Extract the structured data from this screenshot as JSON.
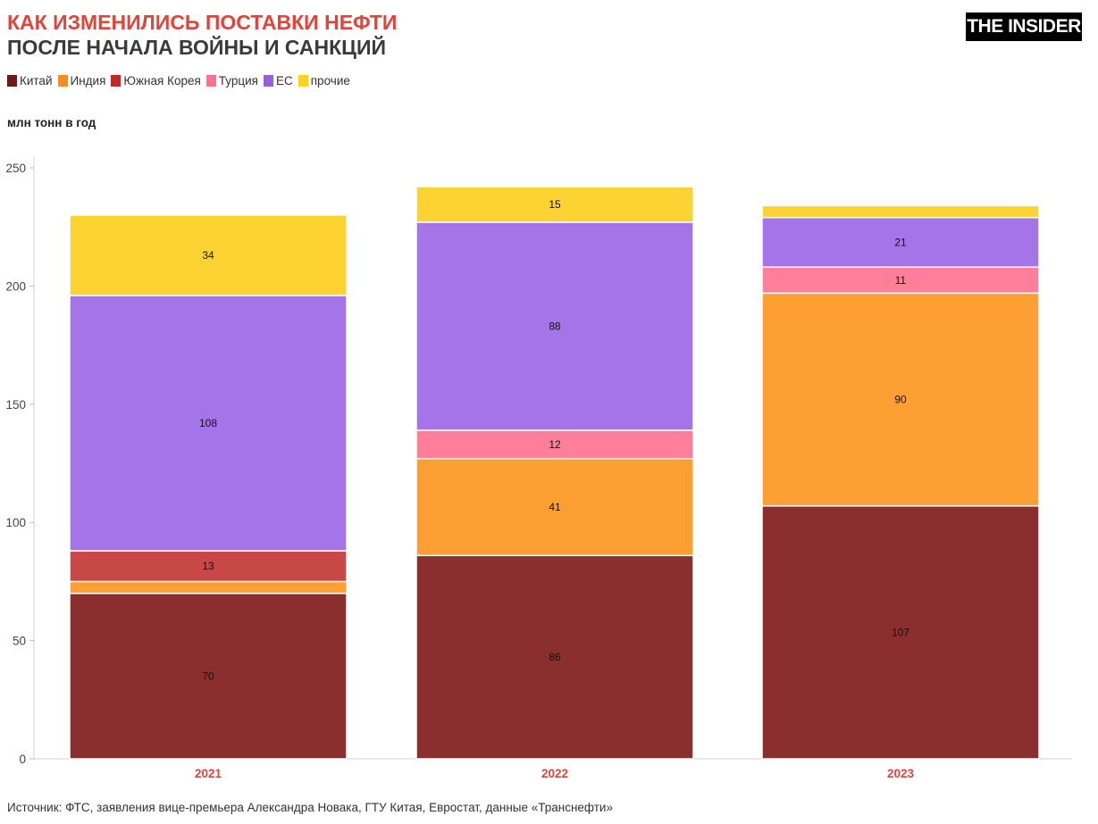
{
  "header": {
    "title_line1": "КАК ИЗМЕНИЛИСЬ ПОСТАВКИ НЕФТИ",
    "title_line2": "ПОСЛЕ НАЧАЛА ВОЙНЫ И САНКЦИЙ",
    "logo_text": "THE INSIDER"
  },
  "legend": [
    {
      "label": "Китай",
      "color": "#6b1a1a"
    },
    {
      "label": "Индия",
      "color": "#fb8c1a"
    },
    {
      "label": "Южная Корея",
      "color": "#c02a2a"
    },
    {
      "label": "Турция",
      "color": "#ff6f8e"
    },
    {
      "label": "ЕС",
      "color": "#9a5ce0"
    },
    {
      "label": "прочие",
      "color": "#ffd21f"
    }
  ],
  "unit_label": "млн тонн в год",
  "source": "Источник: ФТС, заявления вице-премьера Александра Новака, ГТУ Китая, Евростат, данные «Транснефти»",
  "chart_data": {
    "type": "bar",
    "stacked": true,
    "categories": [
      "2021",
      "2022",
      "2023"
    ],
    "ylim": [
      0,
      250
    ],
    "yticks": [
      0,
      50,
      100,
      150,
      200,
      250
    ],
    "grid": false,
    "legend_position": "top-left",
    "series": [
      {
        "name": "Китай",
        "color": "#8b2e2e",
        "values": [
          70,
          86,
          107
        ],
        "labels": [
          "70",
          "86",
          "107"
        ]
      },
      {
        "name": "Индия",
        "color": "#fd9f32",
        "values": [
          5,
          41,
          90
        ],
        "labels": [
          "",
          "41",
          "90"
        ]
      },
      {
        "name": "Южная Корея",
        "color": "#c84848",
        "values": [
          13,
          0,
          0
        ],
        "labels": [
          "13",
          "",
          ""
        ]
      },
      {
        "name": "Турция",
        "color": "#ff7f9a",
        "values": [
          0,
          12,
          11
        ],
        "labels": [
          "",
          "12",
          "11"
        ]
      },
      {
        "name": "ЕС",
        "color": "#a574e8",
        "values": [
          108,
          88,
          21
        ],
        "labels": [
          "108",
          "88",
          "21"
        ]
      },
      {
        "name": "прочие",
        "color": "#fdd333",
        "values": [
          34,
          15,
          5
        ],
        "labels": [
          "34",
          "15",
          ""
        ]
      }
    ]
  }
}
